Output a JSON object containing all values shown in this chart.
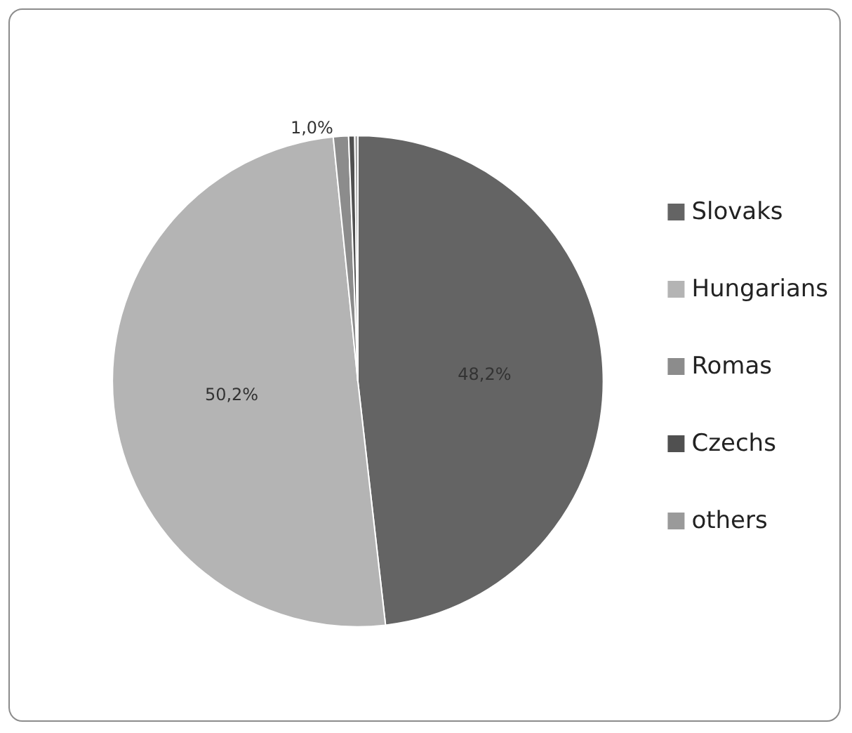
{
  "chart_data": {
    "type": "pie",
    "categories": [
      "Slovaks",
      "Hungarians",
      "Romas",
      "Czechs",
      "others"
    ],
    "values": [
      48.2,
      50.2,
      1.0,
      0.4,
      0.2
    ],
    "colors": [
      "#646464",
      "#b4b4b4",
      "#8c8c8c",
      "#505050",
      "#9a9a9a"
    ],
    "value_labels": [
      "48,2%",
      "50,2%",
      "1,0%",
      null,
      null
    ],
    "legend": "right"
  }
}
